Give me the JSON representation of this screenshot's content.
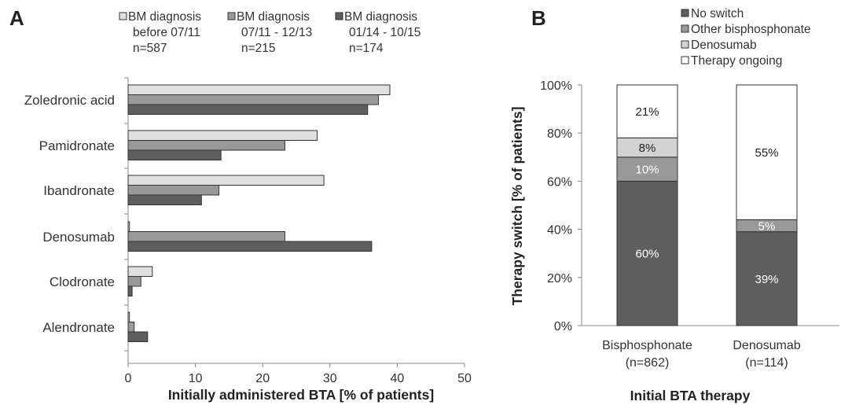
{
  "chart_data": [
    {
      "panel_label": "A",
      "type": "bar",
      "orientation": "horizontal",
      "categories": [
        "Zoledronic acid",
        "Pamidronate",
        "Ibandronate",
        "Denosumab",
        "Clodronate",
        "Alendronate"
      ],
      "series": [
        {
          "name_lines": [
            "BM diagnosis",
            "before 07/11",
            "n=587"
          ],
          "color": "#e0e0e0",
          "values": [
            38.9,
            28.1,
            29.1,
            0.2,
            3.6,
            0.2
          ]
        },
        {
          "name_lines": [
            "BM diagnosis",
            "07/11 - 12/13",
            "n=215"
          ],
          "color": "#999999",
          "values": [
            37.2,
            23.3,
            13.5,
            23.3,
            1.9,
            0.9
          ]
        },
        {
          "name_lines": [
            "BM diagnosis",
            "01/14 - 10/15",
            "n=174"
          ],
          "color": "#5e5e5e",
          "values": [
            35.6,
            13.8,
            10.9,
            36.2,
            0.6,
            2.9
          ]
        }
      ],
      "xlabel": "Initially administered BTA [% of patients]",
      "xlim": [
        0,
        50
      ],
      "xticks": [
        0,
        10,
        20,
        30,
        40,
        50
      ],
      "grid": false,
      "legend_position": "top"
    },
    {
      "panel_label": "B",
      "type": "bar",
      "stacked": true,
      "categories": [
        {
          "lines": [
            "Bisphosphonate",
            "(n=862)"
          ]
        },
        {
          "lines": [
            "Denosumab",
            "(n=114)"
          ]
        }
      ],
      "series": [
        {
          "name": "No switch",
          "color": "#5e5e5e",
          "values": [
            60,
            39
          ],
          "labels": [
            "60%",
            "39%"
          ]
        },
        {
          "name": "Other bisphosphonate",
          "color": "#999999",
          "values": [
            10,
            5
          ],
          "labels": [
            "10%",
            "5%"
          ]
        },
        {
          "name": "Denosumab",
          "color": "#d3d3d3",
          "values": [
            8,
            0
          ],
          "labels": [
            "8%",
            ""
          ]
        },
        {
          "name": "Therapy ongoing",
          "color": "#ffffff",
          "values": [
            21,
            55
          ],
          "labels": [
            "21%",
            "55%"
          ]
        }
      ],
      "ylabel": "Therapy switch [% of patients]",
      "xlabel": "Initial BTA therapy",
      "ylim": [
        0,
        100
      ],
      "yticks": [
        "0%",
        "20%",
        "40%",
        "60%",
        "80%",
        "100%"
      ],
      "grid": false,
      "legend_position": "top-right"
    }
  ]
}
